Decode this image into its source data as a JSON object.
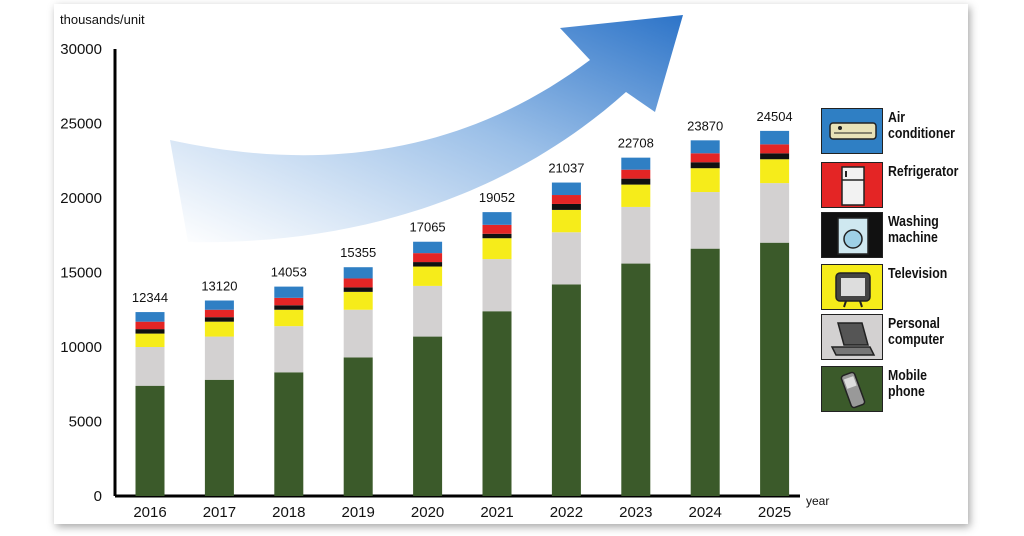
{
  "chart_data": {
    "type": "bar",
    "stacked": true,
    "y_unit_label": "thousands/unit",
    "x_unit_label": "year",
    "categories": [
      "2016",
      "2017",
      "2018",
      "2019",
      "2020",
      "2021",
      "2022",
      "2023",
      "2024",
      "2025"
    ],
    "totals": [
      12344,
      13120,
      14053,
      15355,
      17065,
      19052,
      21037,
      22708,
      23870,
      24504
    ],
    "ylim": [
      0,
      30000
    ],
    "yticks": [
      0,
      5000,
      10000,
      15000,
      20000,
      25000,
      30000
    ],
    "grid": false,
    "legend_position": "right",
    "series": [
      {
        "name": "Mobile phone",
        "color": "#3b5a2a",
        "values": [
          7400,
          7800,
          8300,
          9300,
          10700,
          12400,
          14200,
          15600,
          16600,
          17000
        ]
      },
      {
        "name": "Personal computer",
        "color": "#d3d1d1",
        "values": [
          2600,
          2900,
          3100,
          3200,
          3400,
          3500,
          3500,
          3800,
          3800,
          4000
        ]
      },
      {
        "name": "Television",
        "color": "#f6ec1a",
        "values": [
          900,
          1000,
          1100,
          1200,
          1300,
          1400,
          1500,
          1500,
          1600,
          1600
        ]
      },
      {
        "name": "Washing machine",
        "color": "#111111",
        "values": [
          300,
          300,
          300,
          300,
          300,
          300,
          400,
          400,
          400,
          400
        ]
      },
      {
        "name": "Refrigerator",
        "color": "#e42525",
        "values": [
          500,
          500,
          500,
          600,
          600,
          600,
          600,
          600,
          600,
          600
        ]
      },
      {
        "name": "Air conditioner",
        "color": "#2f7fc4",
        "values": [
          644,
          620,
          753,
          755,
          765,
          852,
          837,
          808,
          870,
          904
        ]
      }
    ]
  },
  "legend": [
    {
      "label": "Air conditioner",
      "icon": "air-conditioner-icon",
      "color": "#2f7fc4"
    },
    {
      "label": "Refrigerator",
      "icon": "refrigerator-icon",
      "color": "#e42525"
    },
    {
      "label": "Washing machine",
      "icon": "washing-machine-icon",
      "color": "#111111"
    },
    {
      "label": "Television",
      "icon": "television-icon",
      "color": "#f6ec1a"
    },
    {
      "label": "Personal computer",
      "icon": "personal-computer-icon",
      "color": "#d3d1d1"
    },
    {
      "label": "Mobile phone",
      "icon": "mobile-phone-icon",
      "color": "#3b5a2a"
    }
  ],
  "decoration": {
    "trend_arrow_color": "#3f87d6"
  }
}
